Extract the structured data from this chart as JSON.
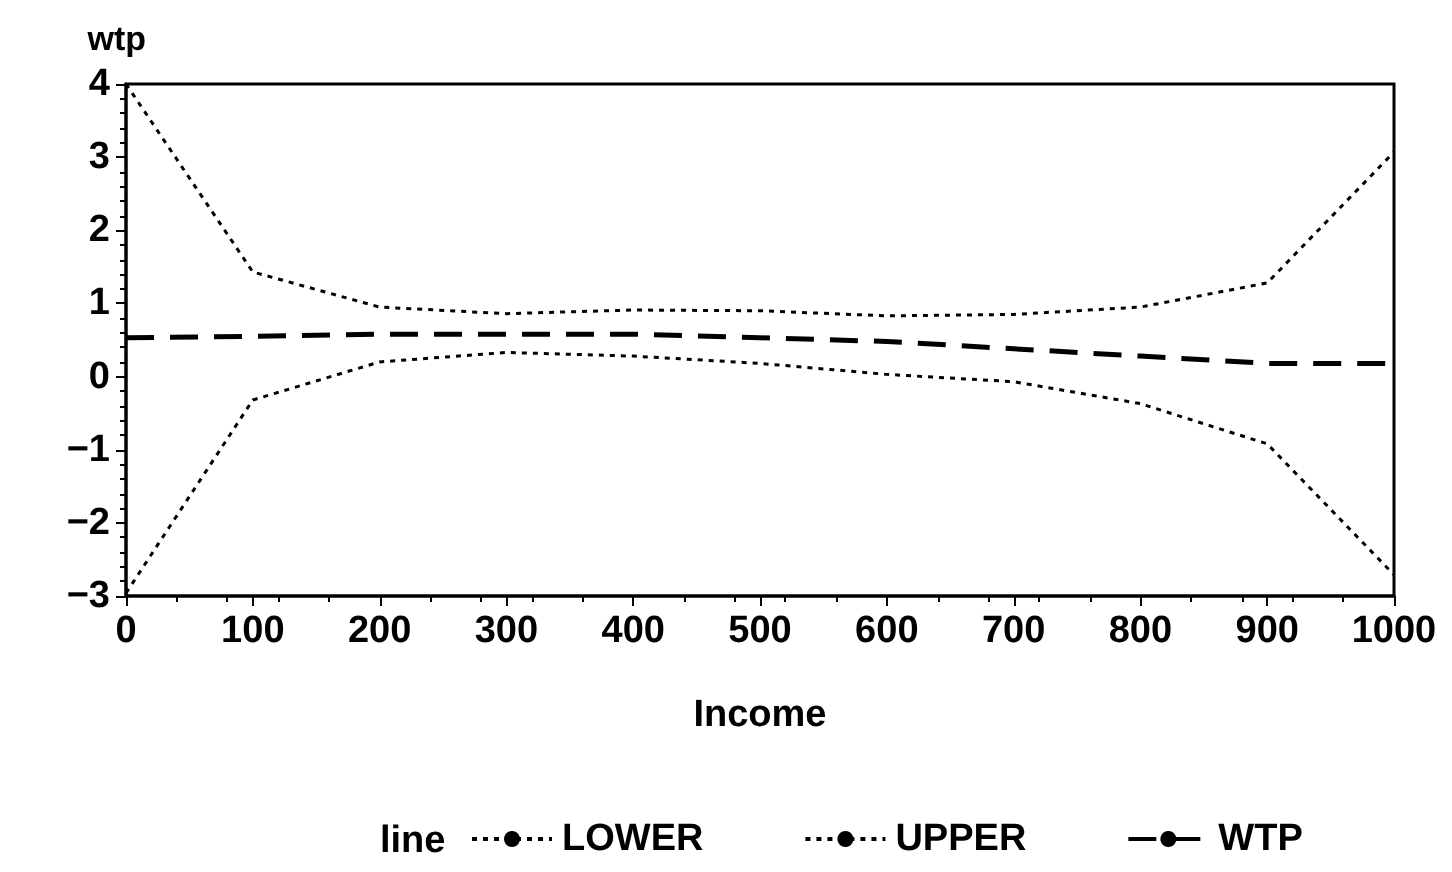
{
  "chart_data": {
    "type": "line",
    "xlabel": "Income",
    "ylabel": "wtp",
    "legend_title": "line",
    "legend": "bottom",
    "x": [
      0,
      100,
      200,
      300,
      400,
      500,
      600,
      700,
      800,
      900,
      1000
    ],
    "series": [
      {
        "name": "LOWER",
        "color": "#000000",
        "line_style": "dotted",
        "values": [
          -2.96,
          -0.32,
          0.2,
          0.33,
          0.28,
          0.18,
          0.03,
          -0.07,
          -0.37,
          -0.92,
          -2.71
        ]
      },
      {
        "name": "UPPER",
        "color": "#000000",
        "line_style": "dotted",
        "values": [
          4.0,
          1.43,
          0.95,
          0.86,
          0.91,
          0.9,
          0.83,
          0.85,
          0.95,
          1.28,
          3.07
        ]
      },
      {
        "name": "WTP",
        "color": "#000000",
        "line_style": "dashed",
        "values": [
          0.53,
          0.55,
          0.58,
          0.58,
          0.58,
          0.53,
          0.48,
          0.38,
          0.28,
          0.18,
          0.18
        ]
      }
    ],
    "xlim": [
      0,
      1000
    ],
    "xticks": [
      0,
      100,
      200,
      300,
      400,
      500,
      600,
      700,
      800,
      900,
      1000
    ],
    "ylim": [
      -3,
      4
    ],
    "yticks": [
      -3,
      -2,
      -1,
      0,
      1,
      2,
      3,
      4
    ],
    "grid": false,
    "marker": "none"
  }
}
